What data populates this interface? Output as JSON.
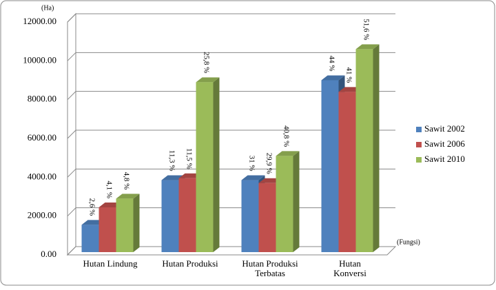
{
  "chart_data": {
    "type": "bar3d",
    "y_label": "(Ha)",
    "x_label": "(Fungsi)",
    "categories": [
      "Hutan Lindung",
      "Hutan Produksi",
      "Hutan Produksi\nTerbatas",
      "Hutan\nKonversi"
    ],
    "series": [
      {
        "name": "Sawit 2002",
        "color": "#4f81bd",
        "values": [
          1550,
          3850,
          3850,
          9000
        ],
        "annotations": [
          "2,6 %",
          "11,3 %",
          "31 %",
          "44 %"
        ]
      },
      {
        "name": "Sawit 2006",
        "color": "#c0504d",
        "values": [
          2450,
          3950,
          3700,
          8400
        ],
        "annotations": [
          "4,1 %",
          "11,5 %",
          "29,9 %",
          "41 %"
        ]
      },
      {
        "name": "Sawit 2010",
        "color": "#9bbb59",
        "values": [
          2900,
          8900,
          5100,
          10600
        ],
        "annotations": [
          "4,8 %",
          "25,8 %",
          "40,8 %",
          "51,6 %"
        ]
      }
    ],
    "ylim": [
      0,
      12000
    ],
    "yticks": [
      {
        "value": 0,
        "label": "0.00"
      },
      {
        "value": 2000,
        "label": "2000.00"
      },
      {
        "value": 4000,
        "label": "4000.00"
      },
      {
        "value": 6000,
        "label": "6000.00"
      },
      {
        "value": 8000,
        "label": "8000.00"
      },
      {
        "value": 10000,
        "label": "10000.00"
      },
      {
        "value": 12000,
        "label": "12000.00"
      }
    ],
    "grid": true,
    "legend": "right"
  }
}
